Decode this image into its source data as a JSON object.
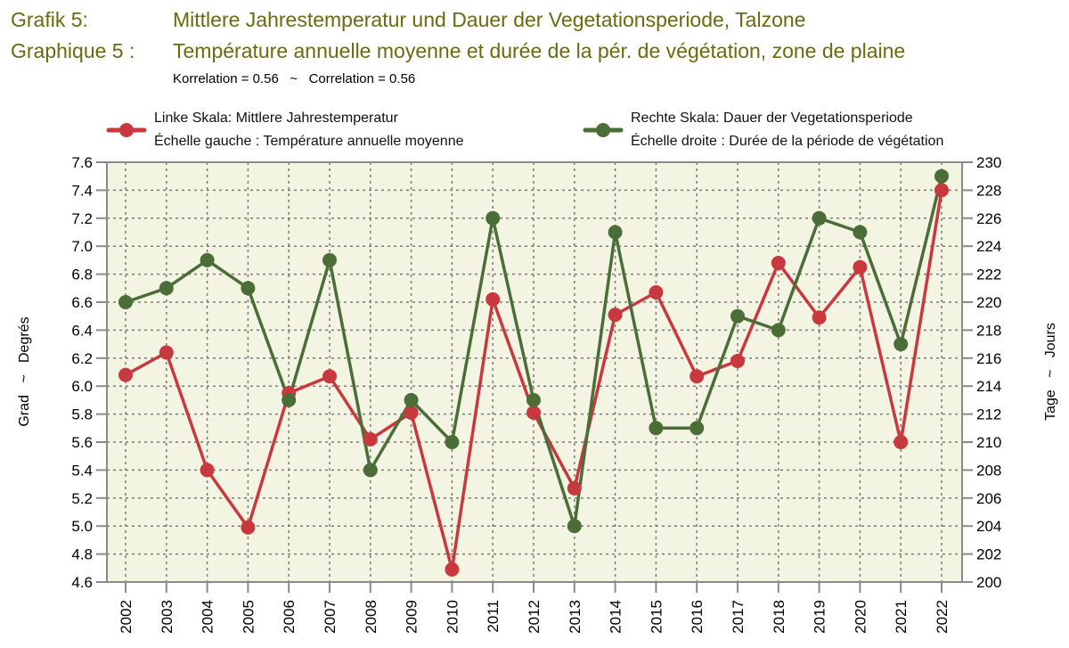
{
  "header": {
    "title_de_label": "Grafik 5:",
    "title_de": "Mittlere Jahrestemperatur und Dauer der Vegetationsperiode, Talzone",
    "title_fr_label": "Graphique 5 :",
    "title_fr": "Température annuelle moyenne et durée de la pér. de végétation, zone de plaine",
    "correlation": "Korrelation = 0.56   ~   Correlation = 0.56"
  },
  "colors": {
    "temperature": "#c8393f",
    "vegetation": "#4b6e39",
    "plot_bg": "#f4f4e2",
    "title": "#6b6b0e",
    "grid": "#7a7a7a",
    "axis": "#8a8a8a"
  },
  "chart_data": {
    "type": "line",
    "title": "Mittlere Jahrestemperatur und Dauer der Vegetationsperiode, Talzone",
    "subtitle": "Korrelation = 0.56 ~ Correlation = 0.56",
    "xlabel": "",
    "ylabel_left": "Grad   ~   Degrés",
    "ylabel_right": "Tage   ~   Jours",
    "categories": [
      "2002",
      "2003",
      "2004",
      "2005",
      "2006",
      "2007",
      "2008",
      "2009",
      "2010",
      "2011",
      "2012",
      "2013",
      "2014",
      "2015",
      "2016",
      "2017",
      "2018",
      "2019",
      "2020",
      "2021",
      "2022"
    ],
    "ylim_left": [
      4.6,
      7.6
    ],
    "ylim_right": [
      200,
      230
    ],
    "yticks_left": [
      "4.6",
      "4.8",
      "5.0",
      "5.2",
      "5.4",
      "5.6",
      "5.8",
      "6.0",
      "6.2",
      "6.4",
      "6.6",
      "6.8",
      "7.0",
      "7.2",
      "7.4",
      "7.6"
    ],
    "yticks_right": [
      "200",
      "202",
      "204",
      "206",
      "208",
      "210",
      "212",
      "214",
      "216",
      "218",
      "220",
      "222",
      "224",
      "226",
      "228",
      "230"
    ],
    "grid": true,
    "legend_position": "top",
    "series": [
      {
        "name": "Linke Skala: Mittlere Jahrestemperatur",
        "name_fr": "Échelle gauche : Température annuelle moyenne",
        "axis": "left",
        "values": [
          6.08,
          6.24,
          5.4,
          4.99,
          5.95,
          6.07,
          5.62,
          5.81,
          4.69,
          6.62,
          5.81,
          5.27,
          6.51,
          6.67,
          6.07,
          6.18,
          6.88,
          6.49,
          6.85,
          5.6,
          7.4
        ]
      },
      {
        "name": "Rechte Skala: Dauer der Vegetationsperiode",
        "name_fr": "Échelle droite : Durée de la période de végétation",
        "axis": "right",
        "values": [
          220,
          221,
          223,
          221,
          213,
          223,
          208,
          213,
          210,
          226,
          213,
          204,
          225,
          211,
          211,
          219,
          218,
          226,
          225,
          217,
          229
        ]
      }
    ]
  }
}
